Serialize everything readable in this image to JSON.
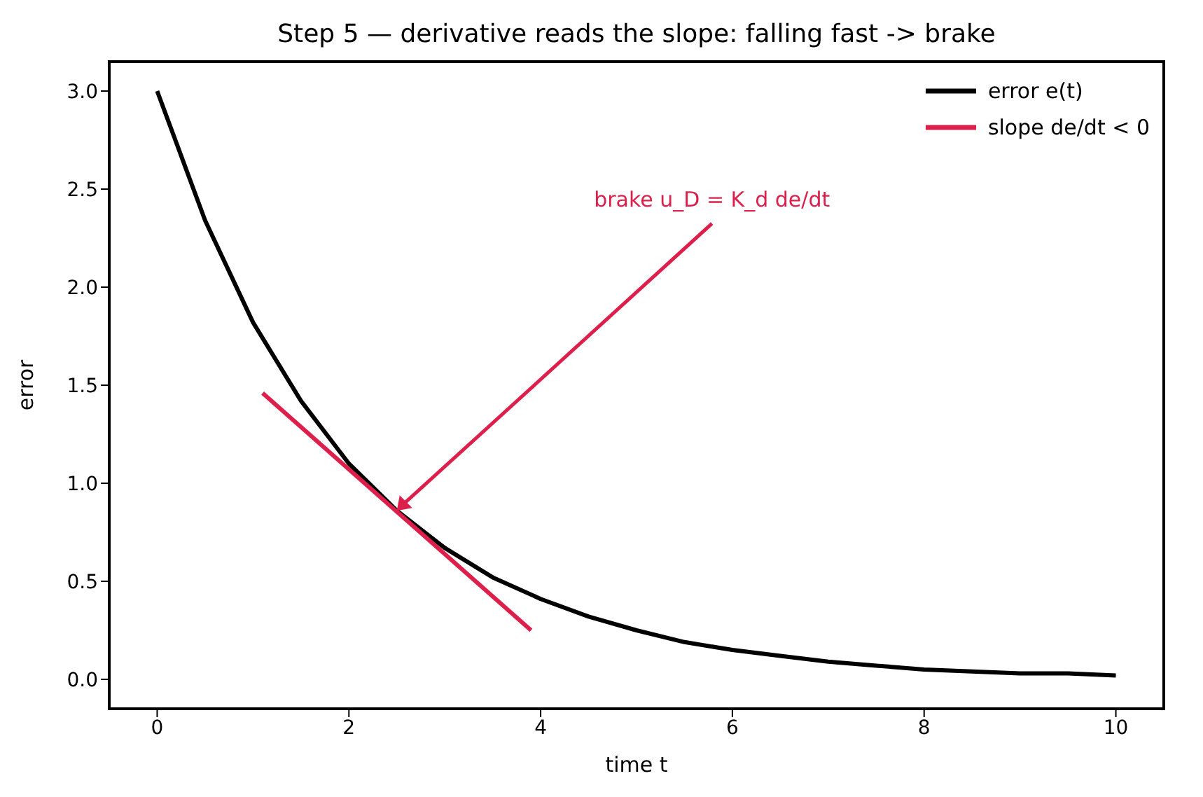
{
  "chart_data": {
    "type": "line",
    "title": "Step 5 — derivative reads the slope: falling fast -> brake",
    "xlabel": "time t",
    "ylabel": "error",
    "series": [
      {
        "name": "error e(t)",
        "color": "#000000",
        "x": [
          0,
          0.5,
          1,
          1.5,
          2,
          2.5,
          3,
          3.5,
          4,
          4.5,
          5,
          5.5,
          6,
          6.5,
          7,
          7.5,
          8,
          8.5,
          9,
          9.5,
          10
        ],
        "values": [
          3.0,
          2.34,
          1.82,
          1.42,
          1.1,
          0.86,
          0.67,
          0.52,
          0.41,
          0.32,
          0.25,
          0.19,
          0.15,
          0.12,
          0.09,
          0.07,
          0.05,
          0.04,
          0.03,
          0.03,
          0.02
        ]
      },
      {
        "name": "slope de/dt < 0",
        "color": "#dc1f4b",
        "x": [
          1.1,
          3.9
        ],
        "values": [
          1.46,
          0.25
        ]
      }
    ],
    "annotations": [
      {
        "text": "brake u_D = K_d de/dt",
        "x": 2.5,
        "y": 0.86
      }
    ],
    "xlim": [
      -0.5,
      10.5
    ],
    "xticks": [
      0,
      2,
      4,
      6,
      8,
      10
    ],
    "ylim": [
      -0.15,
      3.15
    ],
    "yticks": [
      {
        "value": 0,
        "label": "0.0"
      },
      0.5,
      {
        "value": 1,
        "label": "1.0"
      },
      1.5,
      {
        "value": 2,
        "label": "2.0"
      },
      2.5,
      {
        "value": 3,
        "label": "3.0"
      }
    ],
    "grid": false,
    "legend": "top right",
    "marker": "none",
    "line_style": "solid"
  }
}
